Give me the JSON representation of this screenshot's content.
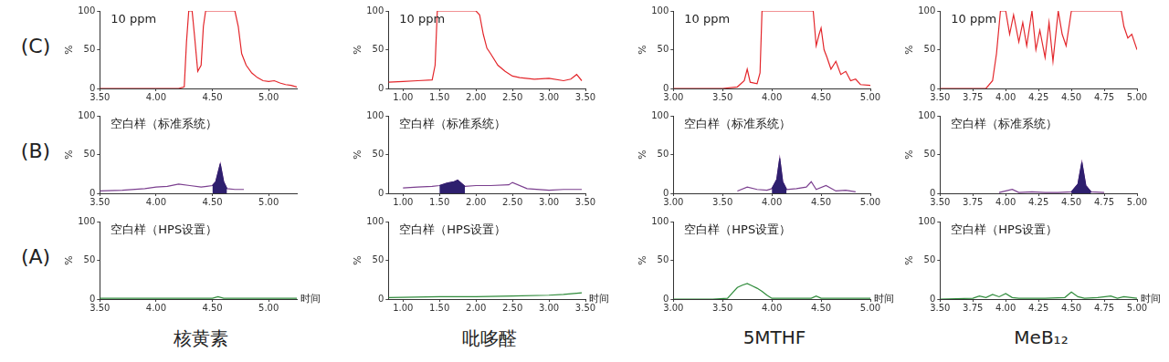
{
  "row_labels": [
    "(C)",
    "(B)",
    "(A)"
  ],
  "column_labels": [
    "核黄素",
    "吡哆醛",
    "5MTHF",
    "MeB₁₂"
  ],
  "chart_data": [
    {
      "type": "line",
      "annotation": "10 ppm",
      "y_label": "%",
      "grid": false,
      "x": [
        3.5,
        3.8,
        4.0,
        4.2,
        4.25,
        4.27,
        4.29,
        4.32,
        4.34,
        4.37,
        4.4,
        4.42,
        4.44,
        4.5,
        4.6,
        4.7,
        4.73,
        4.76,
        4.8,
        4.85,
        4.9,
        4.95,
        5.0,
        5.05,
        5.1,
        5.15,
        5.2,
        5.25
      ],
      "series": [
        {
          "color": "#e3262b",
          "values": [
            0,
            0,
            0,
            0,
            2,
            60,
            100,
            100,
            70,
            22,
            30,
            80,
            100,
            100,
            100,
            100,
            80,
            45,
            30,
            20,
            14,
            10,
            9,
            10,
            7,
            5,
            4,
            2
          ]
        }
      ],
      "xlim": [
        3.5,
        5.25
      ],
      "xticks": [
        {
          "value": 3.5,
          "label": "3.50"
        },
        {
          "value": 4.0,
          "label": "4.00"
        },
        {
          "value": 4.5,
          "label": "4.50"
        },
        {
          "value": 5.0,
          "label": "5.00"
        }
      ],
      "ylim": [
        0,
        100
      ],
      "yticks": [
        0,
        50,
        100
      ]
    },
    {
      "type": "line",
      "annotation": "10 ppm",
      "y_label": "%",
      "grid": false,
      "x": [
        0.8,
        1.0,
        1.2,
        1.4,
        1.44,
        1.47,
        1.6,
        1.8,
        2.0,
        2.05,
        2.1,
        2.15,
        2.2,
        2.3,
        2.4,
        2.5,
        2.6,
        2.8,
        3.0,
        3.2,
        3.3,
        3.38,
        3.45
      ],
      "series": [
        {
          "color": "#e3262b",
          "values": [
            8,
            9,
            10,
            11,
            30,
            100,
            100,
            100,
            100,
            95,
            70,
            52,
            45,
            30,
            22,
            16,
            14,
            12,
            13,
            10,
            12,
            18,
            10
          ]
        }
      ],
      "xlim": [
        0.8,
        3.5
      ],
      "xticks": [
        {
          "value": 1.0,
          "label": "1.00"
        },
        {
          "value": 1.5,
          "label": "1.50"
        },
        {
          "value": 2.0,
          "label": "2.00"
        },
        {
          "value": 2.5,
          "label": "2.50"
        },
        {
          "value": 3.0,
          "label": "3.00"
        },
        {
          "value": 3.5,
          "label": "3.50"
        }
      ],
      "ylim": [
        0,
        100
      ],
      "yticks": [
        0,
        50,
        100
      ]
    },
    {
      "type": "line",
      "annotation": "10 ppm",
      "y_label": "%",
      "grid": false,
      "x": [
        3.0,
        3.5,
        3.65,
        3.72,
        3.75,
        3.78,
        3.85,
        3.88,
        3.9,
        4.0,
        4.2,
        4.42,
        4.45,
        4.48,
        4.5,
        4.53,
        4.56,
        4.6,
        4.65,
        4.7,
        4.75,
        4.8,
        4.85,
        4.9,
        5.0
      ],
      "series": [
        {
          "color": "#e3262b",
          "values": [
            0,
            0,
            2,
            10,
            25,
            8,
            6,
            20,
            100,
            100,
            100,
            100,
            55,
            70,
            78,
            50,
            40,
            25,
            35,
            18,
            22,
            10,
            12,
            5,
            4
          ]
        }
      ],
      "xlim": [
        3.0,
        5.0
      ],
      "xticks": [
        {
          "value": 3.0,
          "label": "3.00"
        },
        {
          "value": 3.5,
          "label": "3.50"
        },
        {
          "value": 4.0,
          "label": "4.00"
        },
        {
          "value": 4.5,
          "label": "4.50"
        },
        {
          "value": 5.0,
          "label": "5.00"
        }
      ],
      "ylim": [
        0,
        100
      ],
      "yticks": [
        0,
        50,
        100
      ]
    },
    {
      "type": "line",
      "annotation": "10 ppm",
      "y_label": "%",
      "grid": false,
      "x": [
        3.5,
        3.85,
        3.9,
        3.93,
        3.96,
        4.0,
        4.03,
        4.06,
        4.1,
        4.13,
        4.16,
        4.2,
        4.23,
        4.26,
        4.3,
        4.33,
        4.36,
        4.4,
        4.43,
        4.46,
        4.5,
        4.7,
        4.88,
        4.9,
        4.93,
        4.96,
        5.0
      ],
      "series": [
        {
          "color": "#e3262b",
          "values": [
            0,
            0,
            10,
            45,
            100,
            100,
            70,
            95,
            60,
            85,
            55,
            100,
            50,
            75,
            40,
            85,
            35,
            100,
            70,
            55,
            100,
            100,
            100,
            80,
            65,
            70,
            50
          ]
        }
      ],
      "xlim": [
        3.5,
        5.0
      ],
      "xticks": [
        {
          "value": 3.5,
          "label": "3.50"
        },
        {
          "value": 3.75,
          "label": "3.75"
        },
        {
          "value": 4.0,
          "label": "4.00"
        },
        {
          "value": 4.25,
          "label": "4.25"
        },
        {
          "value": 4.5,
          "label": "4.50"
        },
        {
          "value": 4.75,
          "label": "4.75"
        },
        {
          "value": 5.0,
          "label": "5.00"
        }
      ],
      "ylim": [
        0,
        100
      ],
      "yticks": [
        0,
        50,
        100
      ]
    },
    {
      "type": "line",
      "annotation": "空白样（标准系统）",
      "y_label": "%",
      "grid": false,
      "x": [
        3.5,
        3.7,
        3.9,
        4.0,
        4.1,
        4.2,
        4.3,
        4.4,
        4.45,
        4.5,
        4.53,
        4.57,
        4.6,
        4.63,
        4.7,
        4.78
      ],
      "series": [
        {
          "color": "#7b3f8f",
          "values": [
            3,
            4,
            6,
            8,
            9,
            12,
            10,
            8,
            9,
            10,
            15,
            38,
            15,
            6,
            5,
            5
          ]
        },
        {
          "color": "#2e1f6e",
          "type": "area",
          "values": [
            null,
            null,
            null,
            null,
            null,
            null,
            null,
            null,
            null,
            10,
            15,
            38,
            15,
            6,
            null,
            null
          ]
        }
      ],
      "xlim": [
        3.5,
        5.25
      ],
      "xticks": [
        {
          "value": 3.5,
          "label": "3.50"
        },
        {
          "value": 4.0,
          "label": "4.00"
        },
        {
          "value": 4.5,
          "label": "4.50"
        },
        {
          "value": 5.0,
          "label": "5.00"
        }
      ],
      "ylim": [
        0,
        100
      ],
      "yticks": [
        0,
        50,
        100
      ]
    },
    {
      "type": "line",
      "annotation": "空白样（标准系统）",
      "y_label": "%",
      "grid": false,
      "x": [
        1.0,
        1.2,
        1.4,
        1.5,
        1.6,
        1.7,
        1.75,
        1.8,
        1.85,
        2.0,
        2.2,
        2.45,
        2.5,
        2.7,
        3.0,
        3.2,
        3.45
      ],
      "series": [
        {
          "color": "#7b3f8f",
          "values": [
            7,
            8,
            9,
            10,
            13,
            15,
            17,
            13,
            9,
            10,
            10,
            11,
            14,
            6,
            4,
            5,
            5
          ]
        },
        {
          "color": "#2e1f6e",
          "type": "area",
          "values": [
            null,
            null,
            null,
            10,
            13,
            15,
            17,
            13,
            9,
            null,
            null,
            null,
            null,
            null,
            null,
            null,
            null
          ]
        }
      ],
      "xlim": [
        0.8,
        3.5
      ],
      "xticks": [
        {
          "value": 1.0,
          "label": "1.00"
        },
        {
          "value": 1.5,
          "label": "1.50"
        },
        {
          "value": 2.0,
          "label": "2.00"
        },
        {
          "value": 2.5,
          "label": "2.50"
        },
        {
          "value": 3.0,
          "label": "3.00"
        },
        {
          "value": 3.5,
          "label": "3.50"
        }
      ],
      "ylim": [
        0,
        100
      ],
      "yticks": [
        0,
        50,
        100
      ]
    },
    {
      "type": "line",
      "annotation": "空白样（标准系统）",
      "y_label": "%",
      "grid": false,
      "x": [
        3.65,
        3.75,
        3.85,
        3.95,
        4.0,
        4.05,
        4.08,
        4.11,
        4.15,
        4.25,
        4.35,
        4.4,
        4.45,
        4.55,
        4.65,
        4.75,
        4.85
      ],
      "series": [
        {
          "color": "#7b3f8f",
          "values": [
            3,
            8,
            5,
            4,
            6,
            18,
            45,
            15,
            5,
            6,
            8,
            15,
            5,
            10,
            3,
            4,
            2
          ]
        },
        {
          "color": "#2e1f6e",
          "type": "area",
          "values": [
            null,
            null,
            null,
            null,
            6,
            18,
            45,
            15,
            5,
            null,
            null,
            null,
            null,
            null,
            null,
            null,
            null
          ]
        }
      ],
      "xlim": [
        3.0,
        5.0
      ],
      "xticks": [
        {
          "value": 3.0,
          "label": "3.00"
        },
        {
          "value": 3.5,
          "label": "3.50"
        },
        {
          "value": 4.0,
          "label": "4.00"
        },
        {
          "value": 4.5,
          "label": "4.50"
        },
        {
          "value": 5.0,
          "label": "5.00"
        }
      ],
      "ylim": [
        0,
        100
      ],
      "yticks": [
        0,
        50,
        100
      ]
    },
    {
      "type": "line",
      "annotation": "空白样（标准系统）",
      "y_label": "%",
      "grid": false,
      "x": [
        3.95,
        4.05,
        4.1,
        4.2,
        4.3,
        4.4,
        4.5,
        4.55,
        4.58,
        4.61,
        4.65,
        4.75
      ],
      "series": [
        {
          "color": "#7b3f8f",
          "values": [
            1,
            5,
            1,
            2,
            1,
            1,
            2,
            12,
            40,
            10,
            2,
            1
          ]
        },
        {
          "color": "#2e1f6e",
          "type": "area",
          "values": [
            null,
            null,
            null,
            null,
            null,
            null,
            2,
            12,
            40,
            10,
            2,
            null
          ]
        }
      ],
      "xlim": [
        3.5,
        5.0
      ],
      "xticks": [
        {
          "value": 3.5,
          "label": "3.50"
        },
        {
          "value": 3.75,
          "label": "3.75"
        },
        {
          "value": 4.0,
          "label": "4.00"
        },
        {
          "value": 4.25,
          "label": "4.25"
        },
        {
          "value": 4.5,
          "label": "4.50"
        },
        {
          "value": 4.75,
          "label": "4.75"
        },
        {
          "value": 5.0,
          "label": "5.00"
        }
      ],
      "ylim": [
        0,
        100
      ],
      "yticks": [
        0,
        50,
        100
      ]
    },
    {
      "type": "line",
      "annotation": "空白样（HPS设置）",
      "y_label": "%",
      "x_label": "时间",
      "grid": false,
      "x": [
        3.5,
        4.0,
        4.5,
        4.55,
        4.6,
        5.0,
        5.25
      ],
      "series": [
        {
          "color": "#2e8b3a",
          "values": [
            1,
            1,
            1,
            3,
            1,
            1,
            1
          ]
        }
      ],
      "xlim": [
        3.5,
        5.25
      ],
      "xticks": [
        {
          "value": 3.5,
          "label": "3.50"
        },
        {
          "value": 4.0,
          "label": "4.00"
        },
        {
          "value": 4.5,
          "label": "4.50"
        },
        {
          "value": 5.0,
          "label": "5.00"
        }
      ],
      "ylim": [
        0,
        100
      ],
      "yticks": [
        0,
        50,
        100
      ]
    },
    {
      "type": "line",
      "annotation": "空白样（HPS设置）",
      "y_label": "%",
      "x_label": "时间",
      "grid": false,
      "x": [
        0.8,
        1.5,
        2.0,
        2.5,
        3.0,
        3.2,
        3.45
      ],
      "series": [
        {
          "color": "#2e8b3a",
          "values": [
            2,
            3,
            3,
            4,
            5,
            6,
            8
          ]
        }
      ],
      "xlim": [
        0.8,
        3.5
      ],
      "xticks": [
        {
          "value": 1.0,
          "label": "1.00"
        },
        {
          "value": 1.5,
          "label": "1.50"
        },
        {
          "value": 2.0,
          "label": "2.00"
        },
        {
          "value": 2.5,
          "label": "2.50"
        },
        {
          "value": 3.0,
          "label": "3.00"
        },
        {
          "value": 3.5,
          "label": "3.50"
        }
      ],
      "ylim": [
        0,
        100
      ],
      "yticks": [
        0,
        50,
        100
      ]
    },
    {
      "type": "line",
      "annotation": "空白样（HPS设置）",
      "y_label": "%",
      "x_label": "时间",
      "grid": false,
      "x": [
        3.0,
        3.4,
        3.55,
        3.6,
        3.65,
        3.7,
        3.75,
        3.8,
        3.85,
        3.9,
        3.95,
        4.0,
        4.4,
        4.45,
        4.5,
        5.0
      ],
      "series": [
        {
          "color": "#2e8b3a",
          "values": [
            0,
            0,
            1,
            8,
            15,
            18,
            20,
            17,
            14,
            10,
            5,
            1,
            1,
            4,
            1,
            1
          ]
        }
      ],
      "xlim": [
        3.0,
        5.0
      ],
      "xticks": [
        {
          "value": 3.0,
          "label": "3.00"
        },
        {
          "value": 3.5,
          "label": "3.50"
        },
        {
          "value": 4.0,
          "label": "4.00"
        },
        {
          "value": 4.5,
          "label": "4.50"
        },
        {
          "value": 5.0,
          "label": "5.00"
        }
      ],
      "ylim": [
        0,
        100
      ],
      "yticks": [
        0,
        50,
        100
      ]
    },
    {
      "type": "line",
      "annotation": "空白样（HPS设置）",
      "y_label": "%",
      "x_label": "时间",
      "grid": false,
      "x": [
        3.5,
        3.75,
        3.8,
        3.85,
        3.9,
        3.95,
        4.0,
        4.05,
        4.1,
        4.3,
        4.45,
        4.5,
        4.55,
        4.6,
        4.7,
        4.8,
        4.85,
        4.9,
        5.0
      ],
      "series": [
        {
          "color": "#2e8b3a",
          "values": [
            0,
            1,
            4,
            2,
            6,
            3,
            7,
            2,
            1,
            1,
            2,
            9,
            3,
            1,
            2,
            4,
            1,
            3,
            1
          ]
        }
      ],
      "xlim": [
        3.5,
        5.0
      ],
      "xticks": [
        {
          "value": 3.5,
          "label": "3.50"
        },
        {
          "value": 3.75,
          "label": "3.75"
        },
        {
          "value": 4.0,
          "label": "4.00"
        },
        {
          "value": 4.25,
          "label": "4.25"
        },
        {
          "value": 4.5,
          "label": "4.50"
        },
        {
          "value": 4.75,
          "label": "4.75"
        },
        {
          "value": 5.0,
          "label": "5.00"
        }
      ],
      "ylim": [
        0,
        100
      ],
      "yticks": [
        0,
        50,
        100
      ]
    }
  ]
}
